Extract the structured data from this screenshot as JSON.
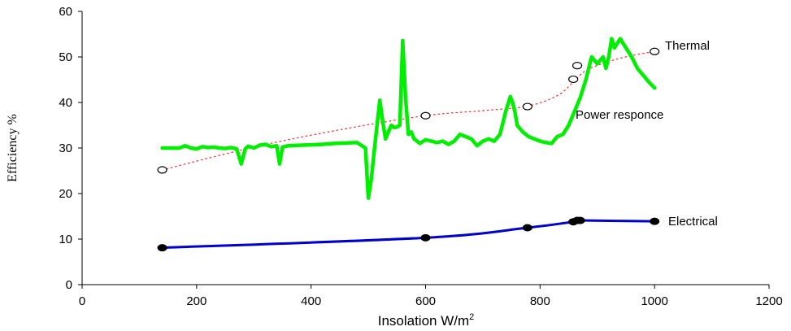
{
  "chart_data": {
    "type": "line",
    "title": "",
    "xlabel": "Insolation W/m",
    "xlabel_sup": "2",
    "ylabel": "Efficiency %",
    "xlim": [
      0,
      1200
    ],
    "ylim": [
      0,
      60
    ],
    "xticks": [
      0,
      200,
      400,
      600,
      800,
      1000,
      1200
    ],
    "yticks": [
      0,
      10,
      20,
      30,
      40,
      50,
      60
    ],
    "grid": false,
    "colors": {
      "power_response": "#00ee00",
      "electrical": "#0000cc",
      "thermal_fit": "#ff3333",
      "markers": "#000000"
    },
    "series": [
      {
        "name": "Thermal",
        "style": "open-circle-markers",
        "x": [
          140,
          600,
          778,
          858,
          865,
          1000
        ],
        "y": [
          25.2,
          37.1,
          39.1,
          45.1,
          48.1,
          51.2
        ]
      },
      {
        "style": "dotted-trend",
        "x": [
          140,
          300,
          450,
          600,
          700,
          778,
          830,
          858,
          880,
          920,
          960,
          1000
        ],
        "y": [
          25.2,
          30.2,
          34.0,
          37.1,
          38.2,
          39.2,
          41.5,
          44.5,
          47.0,
          49.0,
          50.3,
          51.2
        ]
      },
      {
        "name": "Power responce",
        "style": "thick-line",
        "x": [
          140,
          150,
          170,
          180,
          190,
          200,
          210,
          220,
          230,
          240,
          250,
          260,
          270,
          278,
          285,
          290,
          300,
          310,
          320,
          330,
          340,
          345,
          350,
          360,
          380,
          400,
          420,
          440,
          460,
          480,
          495,
          500,
          505,
          510,
          520,
          525,
          530,
          540,
          545,
          550,
          555,
          560,
          565,
          570,
          575,
          580,
          590,
          600,
          610,
          620,
          630,
          640,
          650,
          660,
          670,
          680,
          690,
          700,
          710,
          720,
          730,
          740,
          748,
          752,
          756,
          760,
          770,
          780,
          790,
          800,
          810,
          820,
          830,
          840,
          850,
          860,
          870,
          880,
          890,
          900,
          910,
          915,
          920,
          925,
          930,
          935,
          940,
          950,
          960,
          970,
          980,
          990,
          1000
        ],
        "y": [
          30.0,
          30.0,
          30.0,
          30.5,
          30.0,
          29.8,
          30.3,
          30.1,
          30.2,
          30.0,
          29.9,
          30.1,
          29.8,
          26.5,
          29.8,
          30.4,
          30.0,
          30.6,
          30.8,
          30.3,
          30.5,
          26.5,
          30.2,
          30.5,
          30.6,
          30.7,
          30.8,
          31.0,
          31.1,
          31.2,
          30.0,
          19.0,
          23.0,
          29.0,
          40.5,
          36.0,
          32.0,
          35.0,
          34.5,
          34.6,
          35.0,
          53.6,
          41.0,
          33.0,
          33.5,
          32.0,
          31.0,
          31.8,
          31.5,
          31.2,
          31.5,
          30.8,
          31.5,
          33.0,
          32.5,
          32.0,
          30.5,
          31.5,
          32.0,
          31.5,
          33.0,
          38.0,
          41.3,
          40.0,
          38.0,
          35.0,
          33.5,
          32.5,
          32.0,
          31.5,
          31.2,
          31.0,
          32.5,
          33.0,
          35.0,
          38.0,
          41.0,
          45.0,
          50.0,
          48.5,
          50.0,
          47.5,
          50.0,
          54.0,
          52.0,
          53.0,
          54.0,
          52.0,
          50.0,
          47.5,
          46.0,
          44.5,
          43.2
        ]
      },
      {
        "name": "Electrical",
        "style": "line-with-filled-markers",
        "x": [
          140,
          600,
          778,
          858,
          865,
          870,
          1000
        ],
        "y": [
          8.1,
          10.3,
          12.5,
          13.8,
          14.1,
          14.1,
          13.9
        ]
      }
    ]
  }
}
